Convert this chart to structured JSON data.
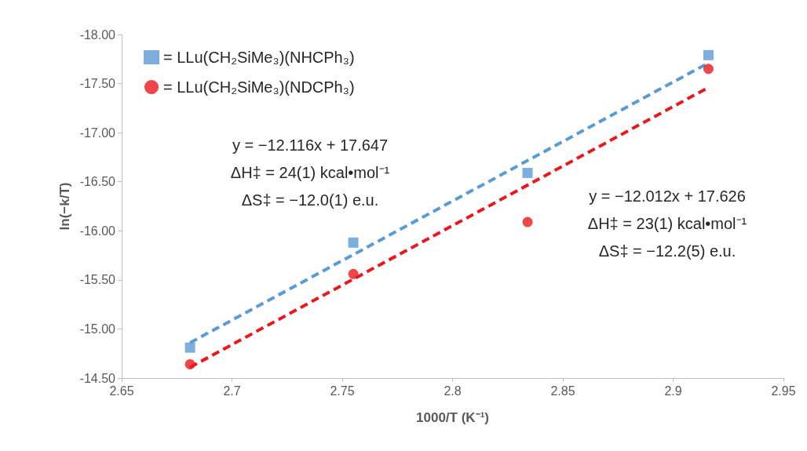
{
  "chart_data": {
    "type": "scatter",
    "xlabel": "1000/T (K⁻¹)",
    "ylabel": "ln(−k/T)",
    "xlim": [
      2.65,
      2.95
    ],
    "xticks": [
      2.65,
      2.7,
      2.75,
      2.8,
      2.85,
      2.9,
      2.95
    ],
    "ylim": [
      -14.5,
      -18
    ],
    "yticks": [
      {
        "value": -18,
        "label": "-18.00"
      },
      {
        "value": -17.5,
        "label": "-17.50"
      },
      {
        "value": -17,
        "label": "-17.00"
      },
      {
        "value": -16.5,
        "label": "-16.50"
      },
      {
        "value": -16,
        "label": "-16.00"
      },
      {
        "value": -15.5,
        "label": "-15.50"
      },
      {
        "value": -15,
        "label": "-15.00"
      },
      {
        "value": -14.5,
        "label": "-14.50"
      }
    ],
    "grid": false,
    "legend": "top left",
    "series": [
      {
        "name": "= LLu(CH₂SiMe₃)(NHCPh₃)",
        "color": "#5b9bd5",
        "marker": "square",
        "x": [
          2.681,
          2.755,
          2.834,
          2.916
        ],
        "values": [
          -14.81,
          -15.88,
          -16.59,
          -17.79
        ]
      },
      {
        "name": "= LLu(CH₂SiMe₃)(NDCPh₃)",
        "color": "#e8191e",
        "marker": "circle",
        "x": [
          2.681,
          2.755,
          2.834,
          2.916
        ],
        "values": [
          -14.64,
          -15.56,
          -16.09,
          -17.65
        ]
      },
      {
        "type": "line",
        "color": "#5b9bd5",
        "marker": "none",
        "line_style": "dashed",
        "x": [
          2.681,
          2.916
        ],
        "values": [
          -14.86,
          -17.71
        ]
      },
      {
        "type": "line",
        "color": "#e8191e",
        "marker": "none",
        "line_style": "dashed",
        "x": [
          2.681,
          2.916
        ],
        "values": [
          -14.61,
          -17.46
        ]
      }
    ],
    "annotations": [
      "y = −12.116x + 17.647",
      "ΔH‡ = 24(1) kcal•mol⁻¹",
      "ΔS‡ = −12.0(1) e.u.",
      "y = −12.012x + 17.626",
      "ΔH‡ = 23(1) kcal•mol⁻¹",
      "ΔS‡ = −12.2(5) e.u."
    ]
  }
}
